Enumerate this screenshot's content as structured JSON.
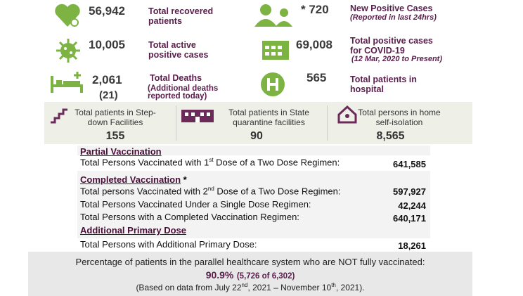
{
  "top_stats": [
    {
      "value": "56,942",
      "label": "Total recovered patients"
    },
    {
      "value": "* 720",
      "label": "New Positive Cases",
      "note": "(Reported in last 24hrs)"
    },
    {
      "value": "10,005",
      "label": "Total active positive cases"
    },
    {
      "value": "69,008",
      "label": "Total positive cases for COVID-19",
      "note": "(12 Mar, 2020 to Present)"
    },
    {
      "value": "2,061",
      "sub_value": "(21)",
      "label": "Total Deaths",
      "note": "(Additional deaths reported today)"
    },
    {
      "value": "565",
      "label": "Total patients in hospital"
    }
  ],
  "facilities": [
    {
      "label": "Total patients in Step-down Facilities",
      "value": "155"
    },
    {
      "label": "Total patients in State quarantine facilities",
      "value": "90"
    },
    {
      "label": "Total persons in home self-isolation",
      "value": "8,565"
    }
  ],
  "vaccination": {
    "partial": {
      "heading": "Partial Vaccination",
      "rows": [
        {
          "label": [
            "Total Persons Vaccinated with 1",
            "st",
            " Dose of a Two Dose Regimen:"
          ],
          "value": "641,585"
        }
      ]
    },
    "completed": {
      "heading": "Completed Vaccination",
      "heading_note": "*",
      "rows": [
        {
          "label": [
            "Total persons Vaccinated with 2",
            "nd",
            " Dose of a Two Dose Regimen:"
          ],
          "value": "597,927"
        },
        {
          "label": [
            "Total Persons Vaccinated Under a Single Dose Regimen:"
          ],
          "value": "42,244"
        },
        {
          "label": [
            "Total Persons with a Completed Vaccination Regimen:"
          ],
          "value": "640,171"
        }
      ]
    },
    "additional": {
      "heading": "Additional Primary Dose",
      "rows": [
        {
          "label": [
            "Total Persons with Additional Primary Dose:"
          ],
          "value": "18,261"
        }
      ]
    }
  },
  "footer": {
    "line1": "Percentage of patients in the parallel healthcare system who are NOT fully vaccinated:",
    "percent": "90.9%",
    "detail": "(5,726 of 6,302)",
    "line3": [
      "(Based on data from July 22",
      "nd",
      ", 2021 – November 10",
      "th",
      ", 2021)."
    ]
  }
}
